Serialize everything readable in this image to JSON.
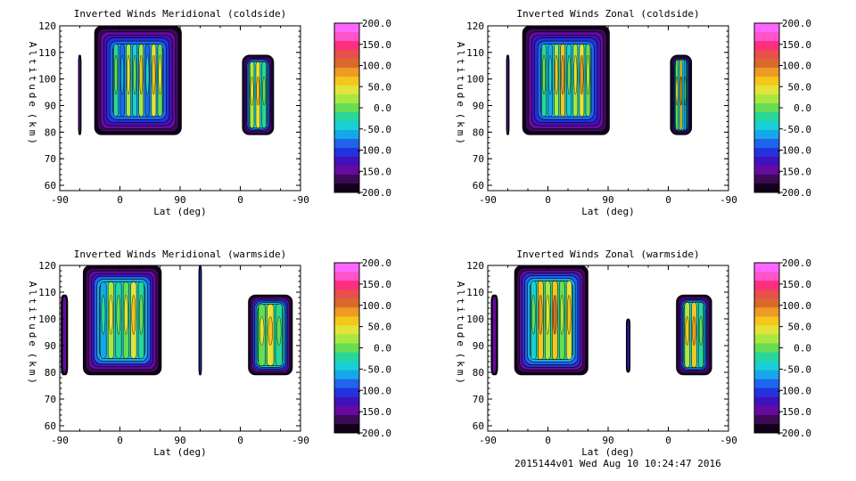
{
  "footer": "2015144v01 Wed Aug 10 10:24:47 2016",
  "colorbar": {
    "ticks": [
      "200.0",
      "150.0",
      "100.0",
      "50.0",
      "0.0",
      "-50.0",
      "-100.0",
      "-150.0",
      "-200.0"
    ],
    "colors": [
      "#ff66ff",
      "#ff55cc",
      "#ff2f80",
      "#e8504c",
      "#d96a2c",
      "#ee9a23",
      "#f5c61c",
      "#e2e43a",
      "#a9e843",
      "#66dd55",
      "#29d69a",
      "#18cfd5",
      "#16a7ea",
      "#2064ee",
      "#2233dd",
      "#4111bb",
      "#660aa0",
      "#3d0a55",
      "#11001a"
    ],
    "range": [
      -200,
      200
    ]
  },
  "chart_data": [
    {
      "type": "heatmap",
      "title": "Inverted Winds Meridional (coldside)",
      "xlabel": "Lat (deg)",
      "ylabel": "Altitude (km)",
      "xticks": [
        "-90",
        "0",
        "90",
        "0",
        "-90"
      ],
      "yticks": [
        "60",
        "70",
        "80",
        "90",
        "100",
        "110",
        "120"
      ],
      "ylim": [
        58,
        120
      ],
      "blobs": [
        {
          "lat_span": [
            -62,
            -58
          ],
          "alt_span": [
            79,
            109
          ],
          "value": -150
        },
        {
          "lat_span": [
            -38,
            92
          ],
          "alt_span": [
            79,
            120
          ],
          "value": -60,
          "cells": [
            -20,
            -90,
            20,
            -40,
            30,
            -80,
            40,
            10
          ]
        },
        {
          "lat_span": [
            -3,
            -50
          ],
          "alt_span": [
            79,
            109
          ],
          "value": -40,
          "cells": [
            20,
            40,
            -30
          ]
        }
      ]
    },
    {
      "type": "heatmap",
      "title": "Inverted Winds Zonal (coldside)",
      "xlabel": "Lat (deg)",
      "ylabel": "Altitude (km)",
      "xticks": [
        "-90",
        "0",
        "90",
        "0",
        "-90"
      ],
      "yticks": [
        "60",
        "70",
        "80",
        "90",
        "100",
        "110",
        "120"
      ],
      "ylim": [
        58,
        120
      ],
      "blobs": [
        {
          "lat_span": [
            -62,
            -58
          ],
          "alt_span": [
            79,
            109
          ],
          "value": -150
        },
        {
          "lat_span": [
            -38,
            92
          ],
          "alt_span": [
            79,
            120
          ],
          "value": -50,
          "cells": [
            -30,
            -70,
            30,
            60,
            -40,
            20,
            50,
            -10
          ]
        },
        {
          "lat_span": [
            -3,
            -35
          ],
          "alt_span": [
            79,
            109
          ],
          "value": -40,
          "cells": [
            10,
            60,
            -60
          ]
        }
      ]
    },
    {
      "type": "heatmap",
      "title": "Inverted Winds Meridional (warmside)",
      "xlabel": "Lat (deg)",
      "ylabel": "Altitude (km)",
      "xticks": [
        "-90",
        "0",
        "90",
        "0",
        "-90"
      ],
      "yticks": [
        "60",
        "70",
        "80",
        "90",
        "100",
        "110",
        "120"
      ],
      "ylim": [
        58,
        120
      ],
      "blobs": [
        {
          "lat_span": [
            -88,
            -78
          ],
          "alt_span": [
            79,
            109
          ],
          "value": -150
        },
        {
          "lat_span": [
            -55,
            62
          ],
          "alt_span": [
            79,
            120
          ],
          "value": -40,
          "cells": [
            -60,
            20,
            -20,
            10,
            40,
            -30
          ]
        },
        {
          "lat_span": [
            118,
            122
          ],
          "alt_span": [
            79,
            120
          ],
          "value": -100
        },
        {
          "lat_span": [
            -12,
            -78
          ],
          "alt_span": [
            79,
            109
          ],
          "value": -20,
          "cells": [
            10,
            40,
            -20
          ]
        }
      ]
    },
    {
      "type": "heatmap",
      "title": "Inverted Winds Zonal (warmside)",
      "xlabel": "Lat (deg)",
      "ylabel": "Altitude (km)",
      "xticks": [
        "-90",
        "0",
        "90",
        "0",
        "-90"
      ],
      "yticks": [
        "60",
        "70",
        "80",
        "90",
        "100",
        "110",
        "120"
      ],
      "ylim": [
        58,
        120
      ],
      "blobs": [
        {
          "lat_span": [
            -85,
            -75
          ],
          "alt_span": [
            79,
            109
          ],
          "value": -150
        },
        {
          "lat_span": [
            -50,
            60
          ],
          "alt_span": [
            79,
            120
          ],
          "value": -30,
          "cells": [
            -40,
            60,
            20,
            70,
            -10,
            40
          ]
        },
        {
          "lat_span": [
            117,
            123
          ],
          "alt_span": [
            80,
            100
          ],
          "value": -120
        },
        {
          "lat_span": [
            -12,
            -65
          ],
          "alt_span": [
            79,
            109
          ],
          "value": -40,
          "cells": [
            30,
            60,
            -20
          ]
        }
      ]
    }
  ]
}
